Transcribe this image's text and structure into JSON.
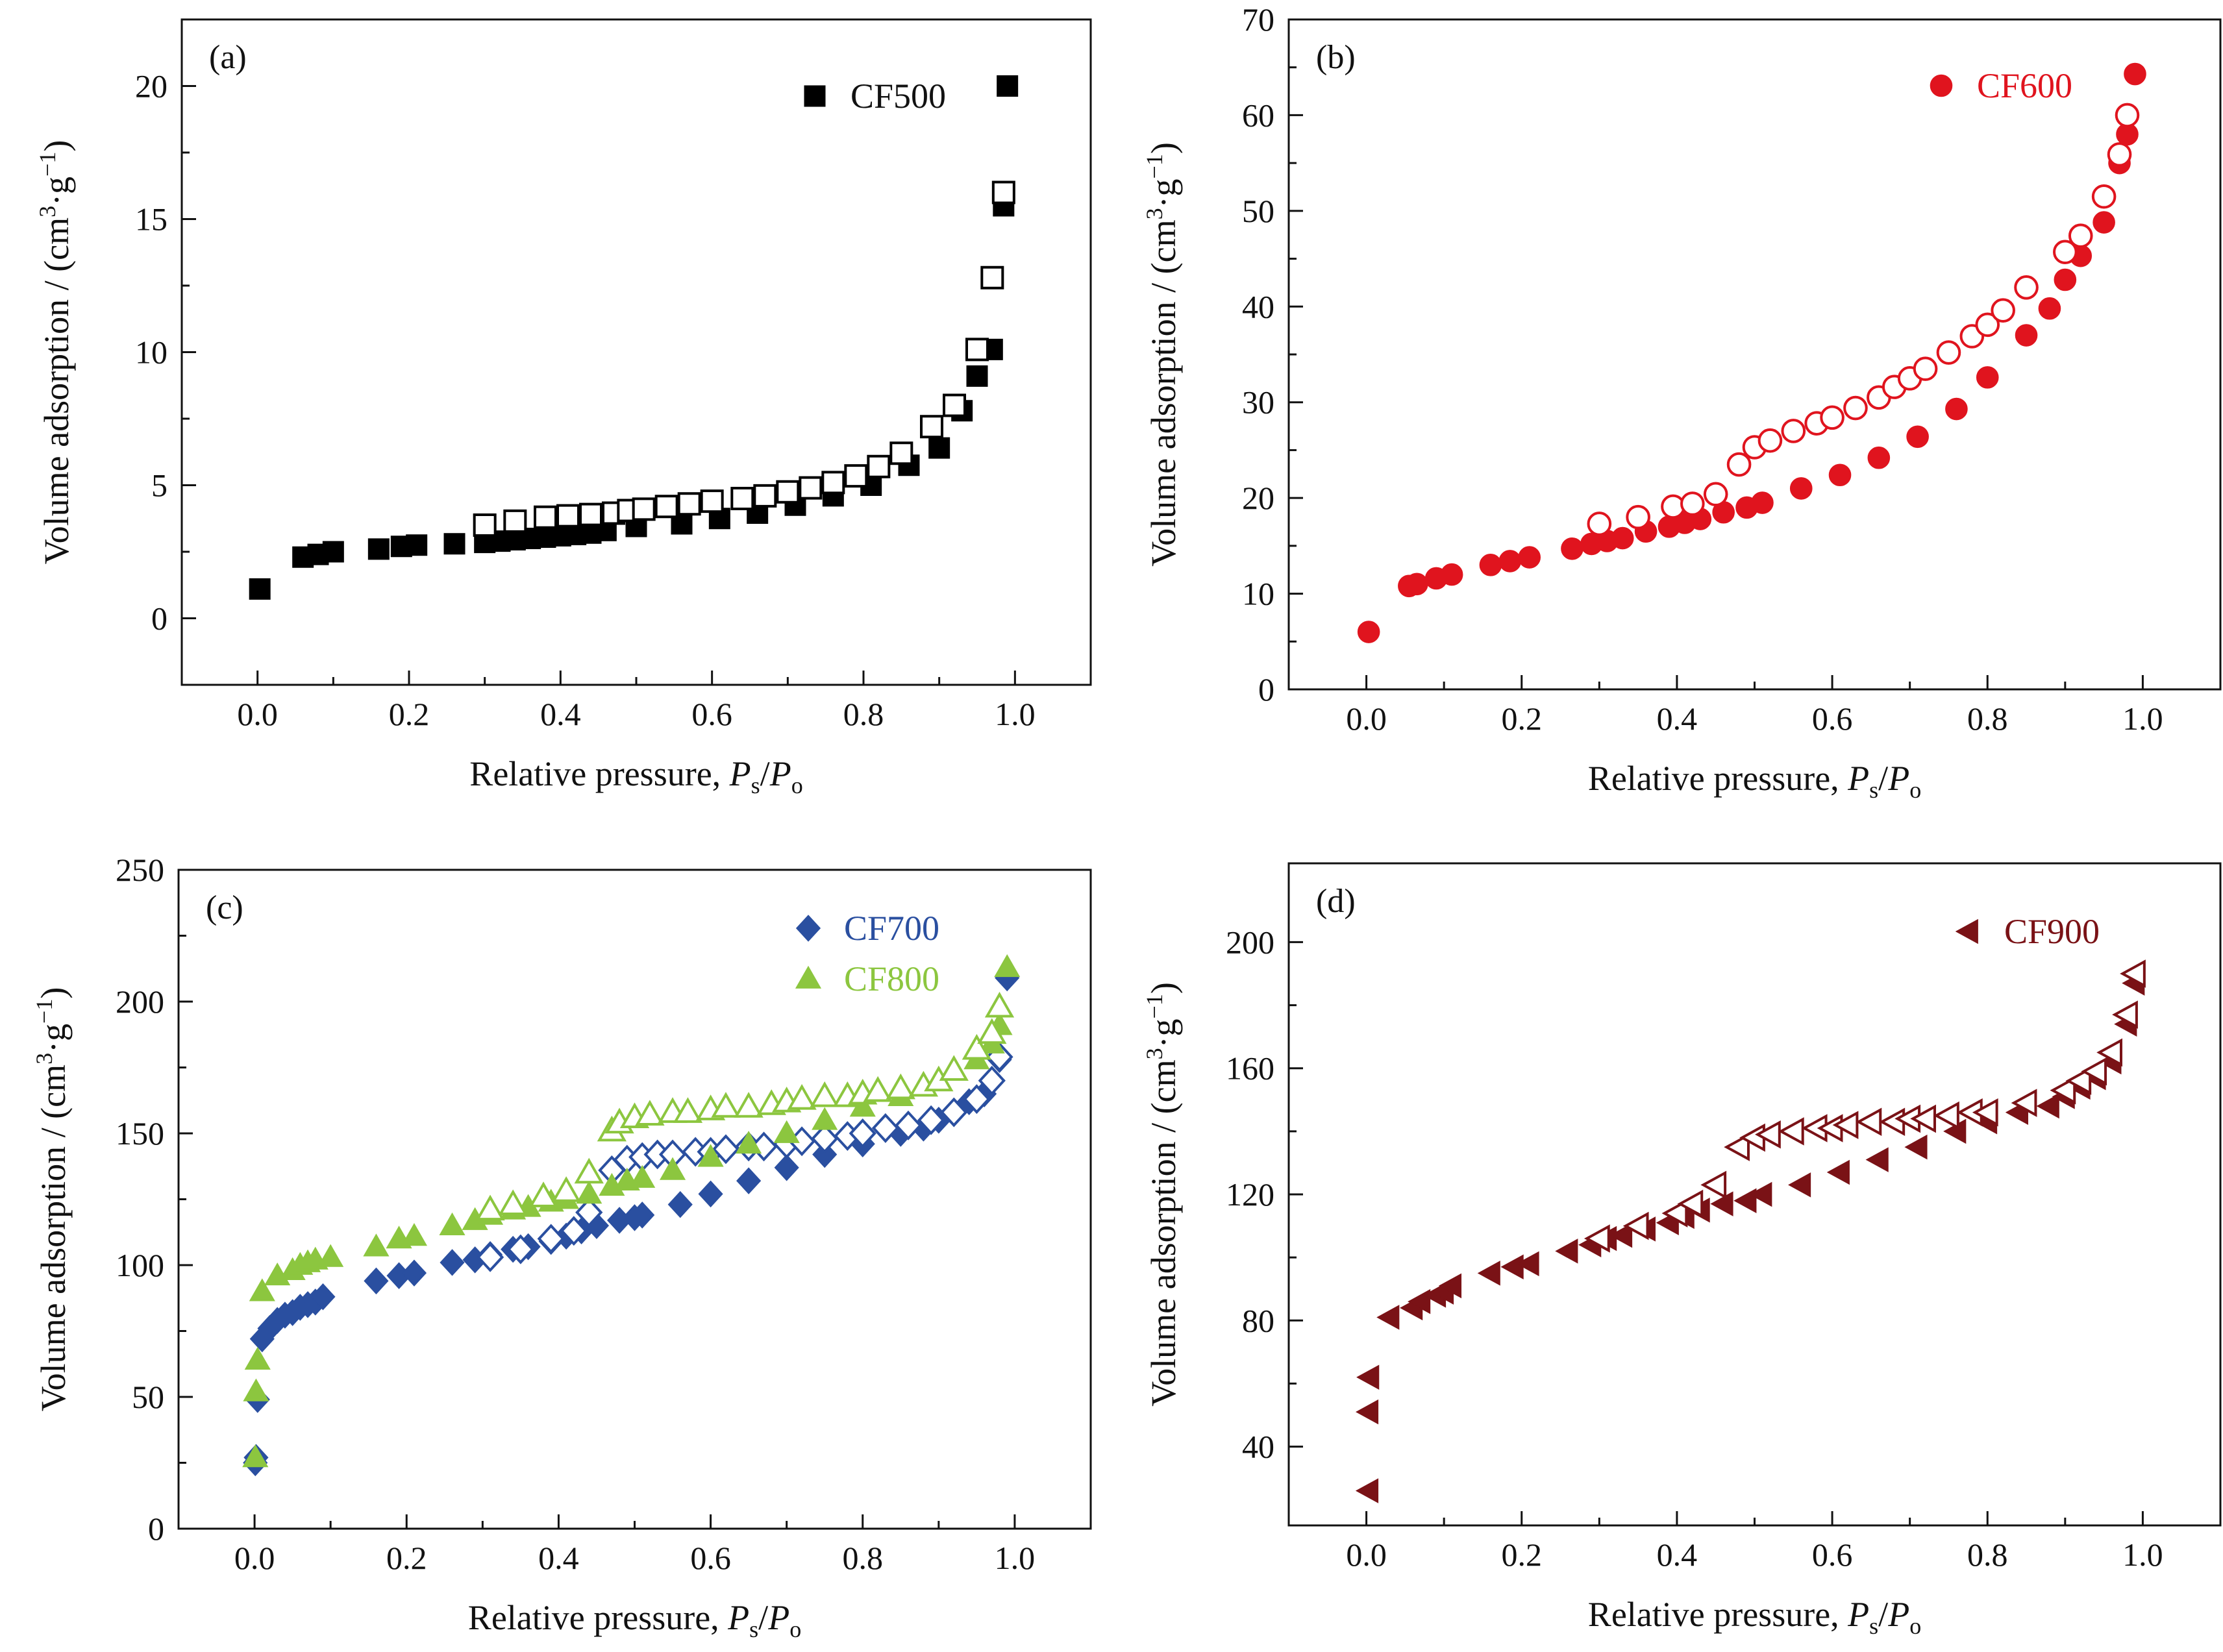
{
  "chart_data": [
    {
      "panel_label": "(a)",
      "type": "scatter",
      "xlabel": "Relative pressure,",
      "xlabel_var": "P",
      "xlabel_sub": "s",
      "xlabel_slash": "/",
      "xlabel_var2": "P",
      "xlabel_sub2": "o",
      "ylabel": "Volume adsorption / (cm",
      "ylabel_sup": "3",
      "ylabel_mid": "·g",
      "ylabel_sup2": "−1",
      "ylabel_end": ")",
      "xlim": [
        -0.1,
        1.1
      ],
      "ylim": [
        -2.5,
        22.5
      ],
      "xticks": [
        "0.0",
        "0.2",
        "0.4",
        "0.6",
        "0.8",
        "1.0"
      ],
      "xtick_values": [
        0,
        0.2,
        0.4,
        0.6,
        0.8,
        1.0
      ],
      "yticks": [
        "0",
        "5",
        "10",
        "15",
        "20"
      ],
      "ytick_values": [
        0,
        5,
        10,
        15,
        20
      ],
      "legend_position": "top-right",
      "series": [
        {
          "name": "CF500",
          "marker": "square",
          "filled": true,
          "color": "#000000",
          "x": [
            0.003,
            0.06,
            0.08,
            0.1,
            0.16,
            0.19,
            0.21,
            0.26,
            0.3,
            0.32,
            0.34,
            0.36,
            0.38,
            0.4,
            0.42,
            0.44,
            0.46,
            0.5,
            0.56,
            0.61,
            0.66,
            0.71,
            0.76,
            0.81,
            0.86,
            0.9,
            0.93,
            0.95,
            0.97,
            0.985,
            0.99
          ],
          "y": [
            1.1,
            2.3,
            2.4,
            2.5,
            2.6,
            2.7,
            2.75,
            2.8,
            2.85,
            2.9,
            2.95,
            3.0,
            3.05,
            3.1,
            3.15,
            3.2,
            3.3,
            3.45,
            3.55,
            3.75,
            3.95,
            4.25,
            4.6,
            5.0,
            5.75,
            6.4,
            7.8,
            9.1,
            10.1,
            15.5,
            20.0
          ]
        },
        {
          "name": "",
          "marker": "square",
          "filled": false,
          "color": "#000000",
          "x": [
            0.3,
            0.34,
            0.38,
            0.41,
            0.44,
            0.47,
            0.49,
            0.51,
            0.54,
            0.57,
            0.6,
            0.64,
            0.67,
            0.7,
            0.73,
            0.76,
            0.79,
            0.82,
            0.85,
            0.89,
            0.92,
            0.95,
            0.97,
            0.985
          ],
          "y": [
            3.5,
            3.65,
            3.8,
            3.85,
            3.9,
            3.95,
            4.05,
            4.1,
            4.2,
            4.3,
            4.4,
            4.5,
            4.6,
            4.75,
            4.9,
            5.1,
            5.35,
            5.7,
            6.2,
            7.2,
            8.0,
            10.1,
            12.8,
            16.0
          ]
        }
      ]
    },
    {
      "panel_label": "(b)",
      "type": "scatter",
      "xlabel": "Relative pressure,",
      "xlabel_var": "P",
      "xlabel_sub": "s",
      "xlabel_slash": "/",
      "xlabel_var2": "P",
      "xlabel_sub2": "o",
      "ylabel": "Volume adsorption / (cm",
      "ylabel_sup": "3",
      "ylabel_mid": "·g",
      "ylabel_sup2": "−1",
      "ylabel_end": ")",
      "xlim": [
        -0.1,
        1.1
      ],
      "ylim": [
        0,
        70
      ],
      "xticks": [
        "0.0",
        "0.2",
        "0.4",
        "0.6",
        "0.8",
        "1.0"
      ],
      "xtick_values": [
        0,
        0.2,
        0.4,
        0.6,
        0.8,
        1.0
      ],
      "yticks": [
        "0",
        "10",
        "20",
        "30",
        "40",
        "50",
        "60",
        "70"
      ],
      "ytick_values": [
        0,
        10,
        20,
        30,
        40,
        50,
        60,
        70
      ],
      "legend_position": "top-right",
      "series": [
        {
          "name": "CF600",
          "marker": "circle",
          "filled": true,
          "color": "#e0141e",
          "x": [
            0.003,
            0.055,
            0.065,
            0.09,
            0.11,
            0.16,
            0.185,
            0.21,
            0.265,
            0.29,
            0.31,
            0.33,
            0.36,
            0.39,
            0.41,
            0.43,
            0.46,
            0.49,
            0.51,
            0.56,
            0.61,
            0.66,
            0.71,
            0.76,
            0.8,
            0.85,
            0.88,
            0.9,
            0.92,
            0.95,
            0.97,
            0.98,
            0.99
          ],
          "y": [
            6,
            10.8,
            11.0,
            11.6,
            12.0,
            13.0,
            13.4,
            13.8,
            14.7,
            15.2,
            15.5,
            15.8,
            16.5,
            17.0,
            17.4,
            17.8,
            18.5,
            19.0,
            19.5,
            21.0,
            22.4,
            24.2,
            26.4,
            29.3,
            32.6,
            37.0,
            39.8,
            42.8,
            45.3,
            48.8,
            55.0,
            58.0,
            64.3
          ]
        },
        {
          "name": "",
          "marker": "circle",
          "filled": false,
          "color": "#e0141e",
          "x": [
            0.3,
            0.35,
            0.395,
            0.42,
            0.45,
            0.48,
            0.5,
            0.52,
            0.55,
            0.58,
            0.6,
            0.63,
            0.66,
            0.68,
            0.7,
            0.72,
            0.75,
            0.78,
            0.8,
            0.82,
            0.85,
            0.9,
            0.92,
            0.95,
            0.97,
            0.98
          ],
          "y": [
            17.3,
            18.0,
            19.1,
            19.4,
            20.4,
            23.5,
            25.3,
            26.0,
            27.0,
            27.8,
            28.4,
            29.4,
            30.5,
            31.6,
            32.5,
            33.5,
            35.2,
            36.9,
            38.1,
            39.6,
            42.0,
            45.7,
            47.4,
            51.5,
            55.9,
            60.0
          ]
        }
      ]
    },
    {
      "panel_label": "(c)",
      "type": "scatter",
      "xlabel": "Relative pressure,",
      "xlabel_var": "P",
      "xlabel_sub": "s",
      "xlabel_slash": "/",
      "xlabel_var2": "P",
      "xlabel_sub2": "o",
      "ylabel": "Volume adsorption / (cm",
      "ylabel_sup": "3",
      "ylabel_mid": "·g",
      "ylabel_sup2": "−1",
      "ylabel_end": ")",
      "xlim": [
        -0.1,
        1.1
      ],
      "ylim": [
        0,
        250
      ],
      "xticks": [
        "0.0",
        "0.2",
        "0.4",
        "0.6",
        "0.8",
        "1.0"
      ],
      "xtick_values": [
        0,
        0.2,
        0.4,
        0.6,
        0.8,
        1.0
      ],
      "yticks": [
        "0",
        "50",
        "100",
        "150",
        "200",
        "250"
      ],
      "ytick_values": [
        0,
        50,
        100,
        150,
        200,
        250
      ],
      "legend_position": "top-right",
      "series": [
        {
          "name": "CF700",
          "marker": "diamond",
          "filled": true,
          "color": "#2a4fa0",
          "x": [
            0.001,
            0.002,
            0.004,
            0.01,
            0.02,
            0.03,
            0.04,
            0.05,
            0.06,
            0.07,
            0.08,
            0.09,
            0.16,
            0.19,
            0.21,
            0.26,
            0.29,
            0.31,
            0.34,
            0.36,
            0.39,
            0.41,
            0.43,
            0.45,
            0.48,
            0.5,
            0.51,
            0.56,
            0.6,
            0.65,
            0.7,
            0.75,
            0.8,
            0.85,
            0.88,
            0.9,
            0.92,
            0.94,
            0.96,
            0.97,
            0.98,
            0.99
          ],
          "y": [
            25,
            27,
            49,
            72,
            76,
            79,
            81,
            82,
            84,
            85,
            86,
            88,
            94,
            96,
            97,
            101,
            102,
            104,
            106,
            107,
            109,
            111,
            113,
            115,
            117,
            118,
            119,
            123,
            127,
            132,
            137,
            142,
            146,
            150,
            152,
            155,
            158,
            162,
            165,
            170,
            178,
            209
          ]
        },
        {
          "name": "",
          "marker": "diamond",
          "filled": false,
          "color": "#2a4fa0",
          "x": [
            0.31,
            0.35,
            0.39,
            0.42,
            0.44,
            0.47,
            0.49,
            0.51,
            0.53,
            0.55,
            0.58,
            0.6,
            0.62,
            0.65,
            0.67,
            0.7,
            0.72,
            0.75,
            0.78,
            0.8,
            0.83,
            0.86,
            0.89,
            0.92,
            0.95,
            0.97,
            0.98
          ],
          "y": [
            103,
            106,
            110,
            113,
            120,
            136,
            140,
            141,
            142,
            142,
            143,
            143,
            144,
            145,
            145,
            146,
            147,
            148,
            149,
            150,
            152,
            153,
            155,
            158,
            163,
            170,
            179
          ]
        },
        {
          "name": "CF800",
          "marker": "triangle-up",
          "filled": true,
          "color": "#8cc63f",
          "x": [
            0.001,
            0.002,
            0.004,
            0.01,
            0.03,
            0.05,
            0.06,
            0.07,
            0.08,
            0.1,
            0.16,
            0.19,
            0.21,
            0.26,
            0.29,
            0.31,
            0.34,
            0.36,
            0.39,
            0.41,
            0.44,
            0.47,
            0.49,
            0.51,
            0.55,
            0.6,
            0.65,
            0.7,
            0.75,
            0.8,
            0.85,
            0.9,
            0.95,
            0.97,
            0.98,
            0.99
          ],
          "y": [
            27,
            52,
            64,
            90,
            96,
            98,
            100,
            101,
            102,
            103,
            107,
            110,
            111,
            115,
            117,
            119,
            121,
            122,
            124,
            125,
            127,
            130,
            132,
            133,
            136,
            141,
            146,
            150,
            155,
            160,
            164,
            170,
            178,
            184,
            191,
            213
          ]
        },
        {
          "name": "",
          "marker": "triangle-up",
          "filled": false,
          "color": "#8cc63f",
          "x": [
            0.31,
            0.34,
            0.38,
            0.41,
            0.44,
            0.47,
            0.48,
            0.5,
            0.52,
            0.55,
            0.57,
            0.6,
            0.62,
            0.65,
            0.68,
            0.7,
            0.72,
            0.75,
            0.78,
            0.8,
            0.82,
            0.85,
            0.88,
            0.9,
            0.92,
            0.95,
            0.97,
            0.98
          ],
          "y": [
            121,
            123,
            126,
            128,
            135,
            151,
            154,
            156,
            157,
            158,
            158,
            159,
            160,
            160,
            161,
            162,
            163,
            164,
            164,
            165,
            166,
            167,
            168,
            170,
            174,
            182,
            188,
            198
          ]
        }
      ]
    },
    {
      "panel_label": "(d)",
      "type": "scatter",
      "xlabel": "Relative pressure,",
      "xlabel_var": "P",
      "xlabel_sub": "s",
      "xlabel_slash": "/",
      "xlabel_var2": "P",
      "xlabel_sub2": "o",
      "ylabel": "Volume adsorption / (cm",
      "ylabel_sup": "3",
      "ylabel_mid": "·g",
      "ylabel_sup2": "−1",
      "ylabel_end": ")",
      "xlim": [
        -0.1,
        1.1
      ],
      "ylim": [
        15,
        225
      ],
      "xticks": [
        "0.0",
        "0.2",
        "0.4",
        "0.6",
        "0.8",
        "1.0"
      ],
      "xtick_values": [
        0,
        0.2,
        0.4,
        0.6,
        0.8,
        1.0
      ],
      "yticks": [
        "40",
        "80",
        "120",
        "160",
        "200"
      ],
      "ytick_values": [
        40,
        80,
        120,
        160,
        200
      ],
      "legend_position": "top-right",
      "series": [
        {
          "name": "CF900",
          "marker": "triangle-left",
          "filled": true,
          "color": "#7a1216",
          "x": [
            0.003,
            0.003,
            0.004,
            0.03,
            0.06,
            0.07,
            0.09,
            0.1,
            0.11,
            0.16,
            0.19,
            0.21,
            0.26,
            0.29,
            0.31,
            0.33,
            0.36,
            0.39,
            0.41,
            0.43,
            0.46,
            0.49,
            0.51,
            0.56,
            0.61,
            0.66,
            0.71,
            0.76,
            0.8,
            0.84,
            0.88,
            0.9,
            0.92,
            0.94,
            0.96,
            0.98,
            0.99
          ],
          "y": [
            26,
            51,
            62,
            81,
            84,
            86,
            88,
            89,
            91,
            95,
            97,
            98,
            102,
            104,
            106,
            107,
            109,
            111,
            113,
            115,
            117,
            118,
            120,
            123,
            127,
            131,
            135,
            140,
            143,
            146,
            148,
            151,
            154,
            157,
            162,
            174,
            187
          ]
        },
        {
          "name": "",
          "marker": "triangle-left",
          "filled": false,
          "color": "#7a1216",
          "x": [
            0.3,
            0.35,
            0.4,
            0.42,
            0.45,
            0.48,
            0.5,
            0.52,
            0.55,
            0.58,
            0.6,
            0.62,
            0.65,
            0.68,
            0.7,
            0.72,
            0.75,
            0.78,
            0.8,
            0.85,
            0.9,
            0.92,
            0.94,
            0.96,
            0.98,
            0.99
          ],
          "y": [
            106,
            110,
            114,
            117,
            123,
            135,
            138,
            139,
            140,
            141,
            141,
            142,
            143,
            143,
            144,
            144,
            145,
            146,
            146,
            149,
            153,
            156,
            159,
            165,
            177,
            190
          ]
        }
      ]
    }
  ]
}
